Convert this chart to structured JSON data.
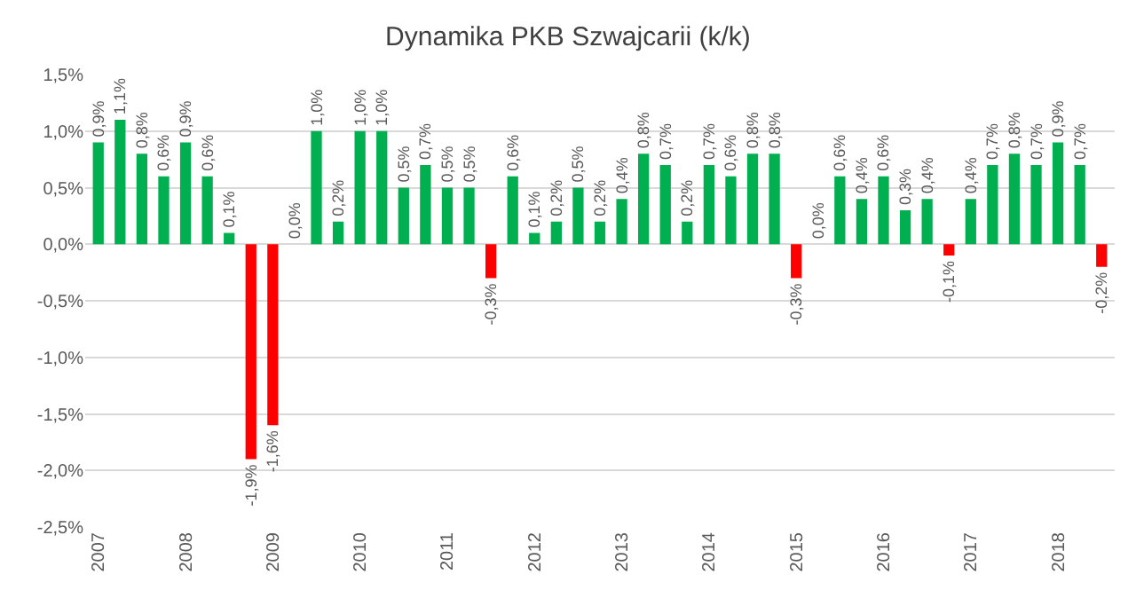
{
  "chart_data": {
    "type": "bar",
    "title": "Dynamika PKB Szwajcarii (k/k)",
    "categories": [
      "2007",
      null,
      null,
      null,
      "2008",
      null,
      null,
      null,
      "2009",
      null,
      null,
      null,
      "2010",
      null,
      null,
      null,
      "2011",
      null,
      null,
      null,
      "2012",
      null,
      null,
      null,
      "2013",
      null,
      null,
      null,
      "2014",
      null,
      null,
      null,
      "2015",
      null,
      null,
      null,
      "2016",
      null,
      null,
      null,
      "2017",
      null,
      null,
      null,
      "2018",
      null,
      null
    ],
    "values": [
      0.9,
      1.1,
      0.8,
      0.6,
      0.9,
      0.6,
      0.1,
      -1.9,
      -1.6,
      0.0,
      1.0,
      0.2,
      1.0,
      1.0,
      0.5,
      0.7,
      0.5,
      0.5,
      -0.3,
      0.6,
      0.1,
      0.2,
      0.5,
      0.2,
      0.4,
      0.8,
      0.7,
      0.2,
      0.7,
      0.6,
      0.8,
      0.8,
      -0.3,
      0.0,
      0.6,
      0.4,
      0.6,
      0.3,
      0.4,
      -0.1,
      0.4,
      0.7,
      0.8,
      0.7,
      0.9,
      0.7,
      -0.2
    ],
    "value_labels": [
      "0,9%",
      "1,1%",
      "0,8%",
      "0,6%",
      "0,9%",
      "0,6%",
      "0,1%",
      "-1,9%",
      "-1,6%",
      "0,0%",
      "1,0%",
      "0,2%",
      "1,0%",
      "1,0%",
      "0,5%",
      "0,7%",
      "0,5%",
      "0,5%",
      "-0,3%",
      "0,6%",
      "0,1%",
      "0,2%",
      "0,5%",
      "0,2%",
      "0,4%",
      "0,8%",
      "0,7%",
      "0,2%",
      "0,7%",
      "0,6%",
      "0,8%",
      "0,8%",
      "-0,3%",
      "0,0%",
      "0,6%",
      "0,4%",
      "0,6%",
      "0,3%",
      "0,4%",
      "-0,1%",
      "0,4%",
      "0,7%",
      "0,8%",
      "0,7%",
      "0,9%",
      "0,7%",
      "-0,2%"
    ],
    "colors": [
      "#00b050",
      "#00b050",
      "#00b050",
      "#00b050",
      "#00b050",
      "#00b050",
      "#00b050",
      "#ff0000",
      "#ff0000",
      "#00b050",
      "#00b050",
      "#00b050",
      "#00b050",
      "#00b050",
      "#00b050",
      "#00b050",
      "#00b050",
      "#00b050",
      "#ff0000",
      "#00b050",
      "#00b050",
      "#00b050",
      "#00b050",
      "#00b050",
      "#00b050",
      "#00b050",
      "#00b050",
      "#00b050",
      "#00b050",
      "#00b050",
      "#00b050",
      "#00b050",
      "#ff0000",
      "#00b050",
      "#00b050",
      "#00b050",
      "#00b050",
      "#00b050",
      "#00b050",
      "#ff0000",
      "#00b050",
      "#00b050",
      "#00b050",
      "#00b050",
      "#00b050",
      "#00b050",
      "#ff0000"
    ],
    "ylim": [
      -2.5,
      1.5
    ],
    "yticks": [
      {
        "value": -2.5,
        "label": "-2,5%"
      },
      {
        "value": -2,
        "label": "-2,0%"
      },
      {
        "value": -1.5,
        "label": "-1,5%"
      },
      {
        "value": -1,
        "label": "-1,0%"
      },
      {
        "value": -0.5,
        "label": "-0,5%"
      },
      {
        "value": 0,
        "label": "0,0%"
      },
      {
        "value": 0.5,
        "label": "0,5%"
      },
      {
        "value": 1,
        "label": "1,0%"
      },
      {
        "value": 1.5,
        "label": "1,5%"
      }
    ],
    "grid": "y"
  }
}
